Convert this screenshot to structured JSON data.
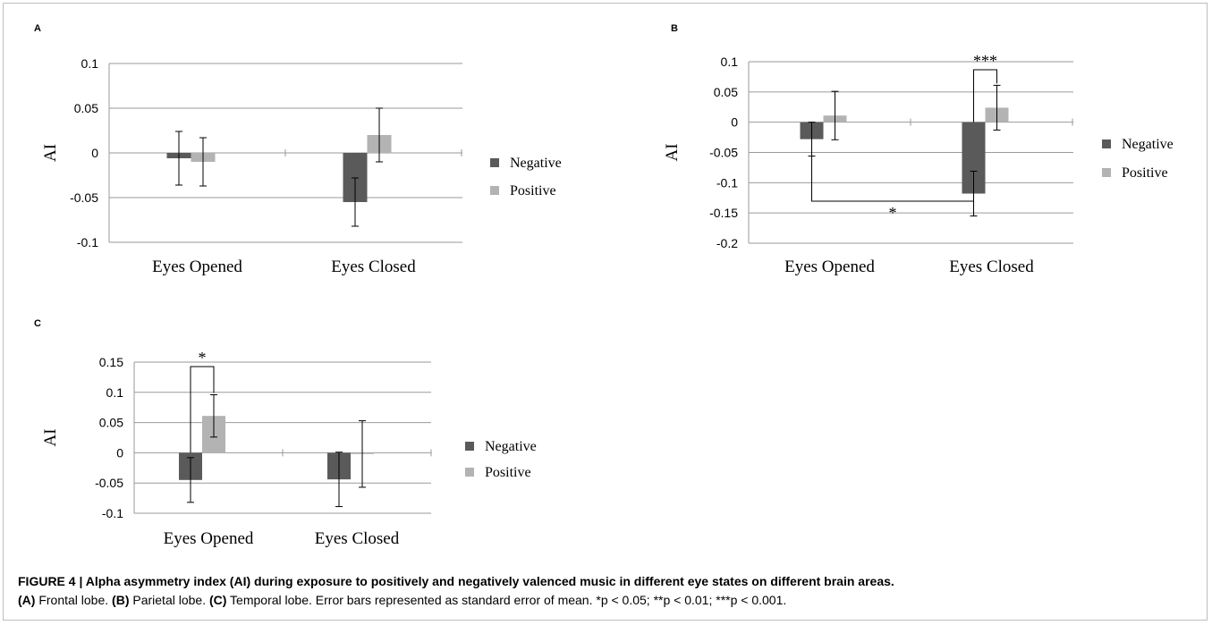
{
  "colors": {
    "negative": "#5a5a5a",
    "positive": "#b3b3b3",
    "grid": "#9a9a9a"
  },
  "chart_data": [
    {
      "panel": "A",
      "type": "bar",
      "ylabel": "AI",
      "categories": [
        "Eyes Opened",
        "Eyes Closed"
      ],
      "series": [
        {
          "name": "Negative",
          "values": [
            -0.006,
            -0.055
          ],
          "errors": [
            0.03,
            0.027
          ]
        },
        {
          "name": "Positive",
          "values": [
            -0.01,
            0.02
          ],
          "errors": [
            0.027,
            0.03
          ]
        }
      ],
      "ylim": [
        -0.1,
        0.1
      ],
      "yticks": [
        "0.1",
        "0.05",
        "0",
        "-0.05",
        "-0.1"
      ],
      "legend": "right",
      "grid": true,
      "annotations": []
    },
    {
      "panel": "B",
      "type": "bar",
      "ylabel": "AI",
      "categories": [
        "Eyes Opened",
        "Eyes Closed"
      ],
      "series": [
        {
          "name": "Negative",
          "values": [
            -0.028,
            -0.118
          ],
          "errors": [
            0.028,
            0.037
          ]
        },
        {
          "name": "Positive",
          "values": [
            0.011,
            0.024
          ],
          "errors": [
            0.04,
            0.037
          ]
        }
      ],
      "ylim": [
        -0.2,
        0.1
      ],
      "yticks": [
        "0.1",
        "0.05",
        "0",
        "-0.05",
        "-0.1",
        "-0.15",
        "-0.2"
      ],
      "legend": "right",
      "grid": true,
      "annotations": [
        "***",
        "*"
      ]
    },
    {
      "panel": "C",
      "type": "bar",
      "ylabel": "AI",
      "categories": [
        "Eyes Opened",
        "Eyes Closed"
      ],
      "series": [
        {
          "name": "Negative",
          "values": [
            -0.045,
            -0.044
          ],
          "errors": [
            0.037,
            0.045
          ]
        },
        {
          "name": "Positive",
          "values": [
            0.061,
            -0.002
          ],
          "errors": [
            0.035,
            0.055
          ]
        }
      ],
      "ylim": [
        -0.1,
        0.15
      ],
      "yticks": [
        "0.15",
        "0.1",
        "0.05",
        "0",
        "-0.05",
        "-0.1"
      ],
      "legend": "right",
      "grid": true,
      "annotations": [
        "*"
      ]
    }
  ],
  "caption": {
    "title": "FIGURE 4 | Alpha asymmetry index (AI) during exposure to positively and negatively valenced music in different eye states on different brain areas.",
    "a_label": "(A)",
    "a_text": " Frontal lobe. ",
    "b_label": "(B)",
    "b_text": " Parietal lobe. ",
    "c_label": "(C)",
    "c_text": " Temporal lobe. Error bars represented as standard error of mean. *p < 0.05; **p < 0.01; ***p < 0.001."
  }
}
